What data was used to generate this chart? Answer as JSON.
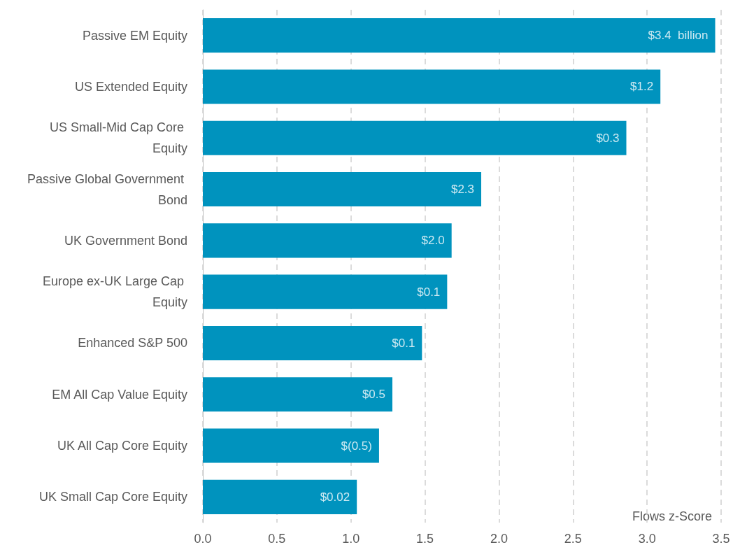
{
  "chart_data": {
    "type": "bar",
    "orientation": "horizontal",
    "xlabel": "Flows z-Score",
    "categories": [
      "Passive EM Equity",
      "US Extended Equity",
      "US Small-Mid Cap Core Equity",
      "Passive Global Government Bond",
      "UK Government Bond",
      "Europe ex-UK Large Cap Equity",
      "Enhanced S&P 500",
      "EM All Cap Value Equity",
      "UK All Cap Core Equity",
      "UK Small Cap Core Equity"
    ],
    "values": [
      3.46,
      3.09,
      2.86,
      1.88,
      1.68,
      1.65,
      1.48,
      1.28,
      1.19,
      1.04
    ],
    "annotations": [
      {
        "text": "$3.4  billion",
        "x": 3.46,
        "y": "Passive EM Equity"
      },
      {
        "text": "$1.2",
        "x": 3.09,
        "y": "US Extended Equity"
      },
      {
        "text": "$0.3",
        "x": 2.86,
        "y": "US Small-Mid Cap Core Equity"
      },
      {
        "text": "$2.3",
        "x": 1.88,
        "y": "Passive Global Government Bond"
      },
      {
        "text": "$2.0",
        "x": 1.68,
        "y": "UK Government Bond"
      },
      {
        "text": "$0.1",
        "x": 1.65,
        "y": "Europe ex-UK Large Cap Equity"
      },
      {
        "text": "$0.1",
        "x": 1.48,
        "y": "Enhanced S&P 500"
      },
      {
        "text": "$0.5",
        "x": 1.28,
        "y": "EM All Cap Value Equity"
      },
      {
        "text": "$(0.5)",
        "x": 1.19,
        "y": "UK All Cap Core Equity"
      },
      {
        "text": "$0.02",
        "x": 1.04,
        "y": "UK Small Cap Core Equity"
      }
    ],
    "color": "#0093be",
    "xlim": [
      0,
      3.5
    ],
    "xticks": [
      {
        "value": 0,
        "label": "0.0"
      },
      0.5,
      {
        "value": 1,
        "label": "1.0"
      },
      1.5,
      {
        "value": 2,
        "label": "2.0"
      },
      2.5,
      {
        "value": 3,
        "label": "3.0"
      },
      3.5
    ],
    "grid": "x"
  }
}
